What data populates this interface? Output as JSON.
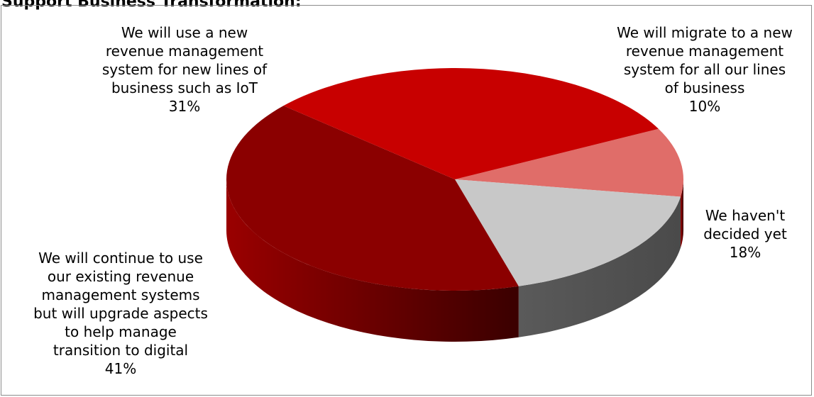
{
  "chart_data": {
    "type": "pie",
    "title": "Support Business Transformation:",
    "slices": [
      {
        "label": "We will migrate to a new revenue management system for all our lines of business",
        "label_lines": [
          "We will migrate to a new",
          "revenue management",
          "system for all our lines",
          "of business"
        ],
        "value": 10,
        "value_label": "10%",
        "color": "#E06D69"
      },
      {
        "label": "We haven't decided yet",
        "label_lines": [
          "We haven't",
          "decided yet"
        ],
        "value": 18,
        "value_label": "18%",
        "color": "#C8C8C8"
      },
      {
        "label": "We will continue to use our existing revenue management systems but will upgrade aspects to help manage transition to digital",
        "label_lines": [
          "We will continue to use",
          "our existing revenue",
          "management systems",
          "but will upgrade aspects",
          "to help manage",
          "transition to digital"
        ],
        "value": 41,
        "value_label": "41%",
        "color": "#8B0000"
      },
      {
        "label": "We will use a new revenue management system for new lines of business such as IoT",
        "label_lines": [
          "We will use a new",
          "revenue management",
          "system for new lines of",
          "business such as IoT"
        ],
        "value": 31,
        "value_label": "31%",
        "color": "#C80000"
      }
    ]
  }
}
